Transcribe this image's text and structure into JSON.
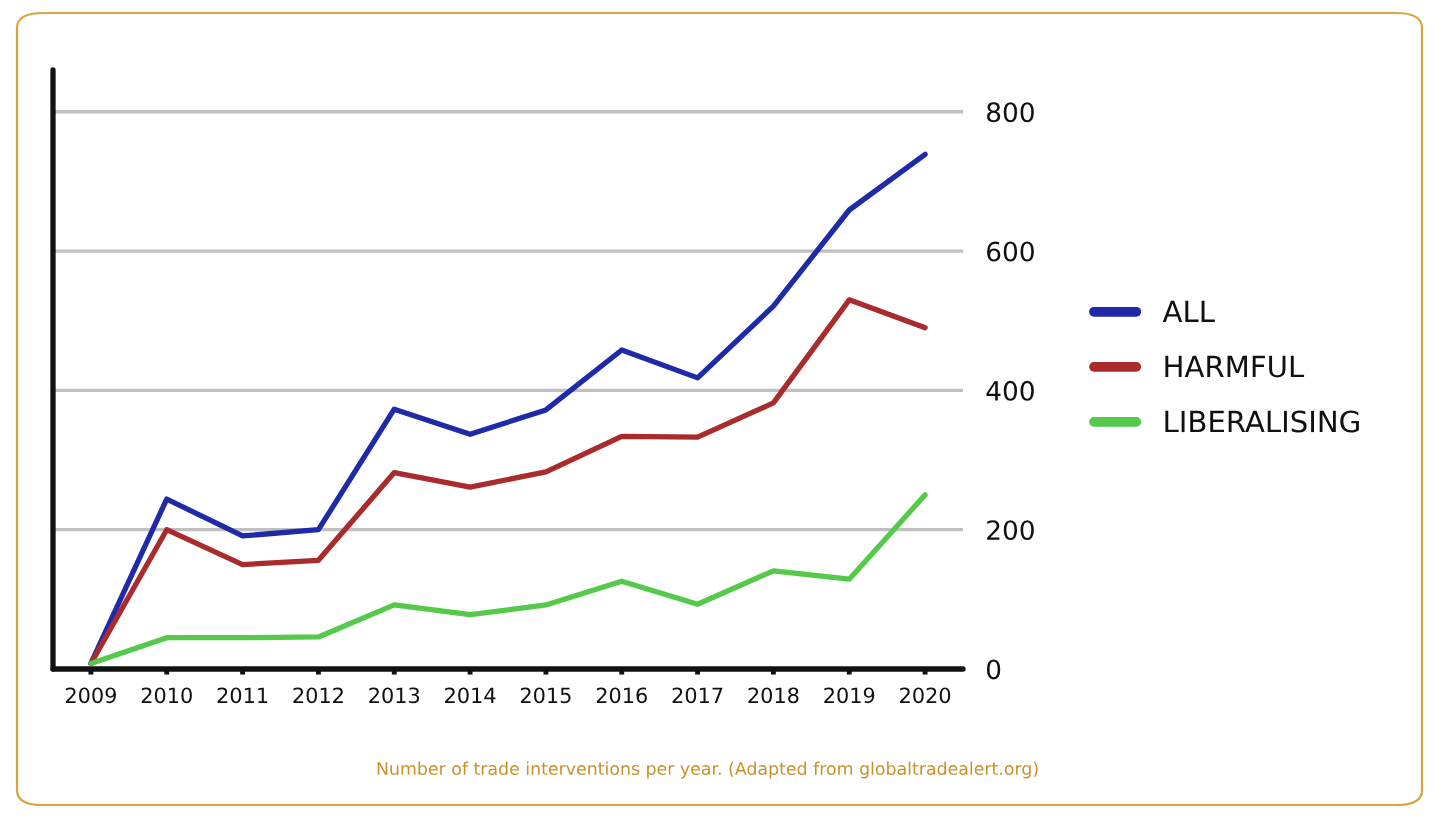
{
  "chart_data": {
    "type": "line",
    "categories": [
      "2009",
      "2010",
      "2011",
      "2012",
      "2013",
      "2014",
      "2015",
      "2016",
      "2017",
      "2018",
      "2019",
      "2020"
    ],
    "series": [
      {
        "name": "ALL",
        "color": "#1f2aa8",
        "values": [
          8,
          244,
          191,
          200,
          373,
          337,
          372,
          458,
          418,
          521,
          659,
          739
        ]
      },
      {
        "name": "HARMFUL",
        "color": "#a92b2b",
        "values": [
          8,
          200,
          150,
          156,
          282,
          261,
          283,
          334,
          333,
          382,
          530,
          490
        ]
      },
      {
        "name": "LIBERALISING",
        "color": "#55c94a",
        "values": [
          8,
          45,
          45,
          46,
          92,
          78,
          92,
          126,
          93,
          141,
          129,
          250
        ]
      }
    ],
    "ylim": [
      0,
      860
    ],
    "yticks": [
      0,
      200,
      400,
      600,
      800
    ],
    "grid": "y",
    "legend": "right",
    "line_style": "solid",
    "annotations": [
      "Number of trade interventions per year. (Adapted from globaltradealert.org)"
    ]
  }
}
